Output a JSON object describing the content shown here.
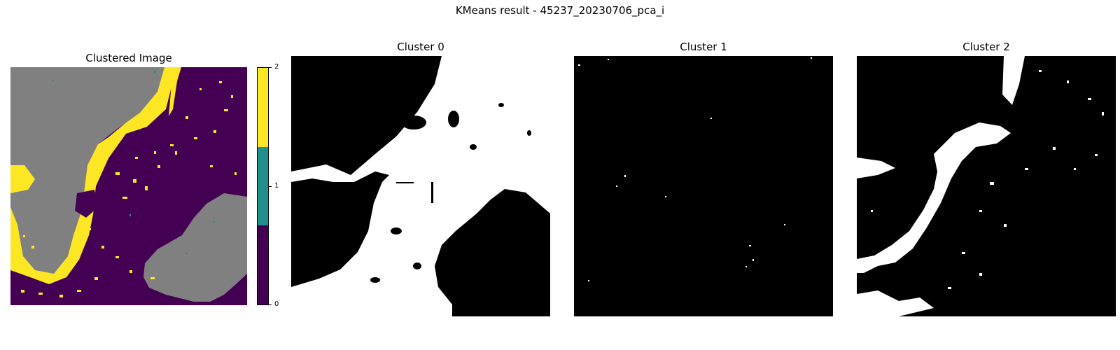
{
  "figure": {
    "title": "KMeans result - 45237_20230706_pca_i"
  },
  "panels": [
    {
      "title": "Clustered Image"
    },
    {
      "title": "Cluster 0"
    },
    {
      "title": "Cluster 1"
    },
    {
      "title": "Cluster 2"
    }
  ],
  "colorbar": {
    "ticks": [
      "0",
      "1",
      "2"
    ],
    "colors": [
      "#440154",
      "#21908d",
      "#fde725"
    ]
  },
  "colors": {
    "background_class": "#808080",
    "cluster_0": "#440154",
    "cluster_1": "#21908d",
    "cluster_2": "#fde725",
    "mask_on": "#ffffff",
    "mask_off": "#000000"
  }
}
